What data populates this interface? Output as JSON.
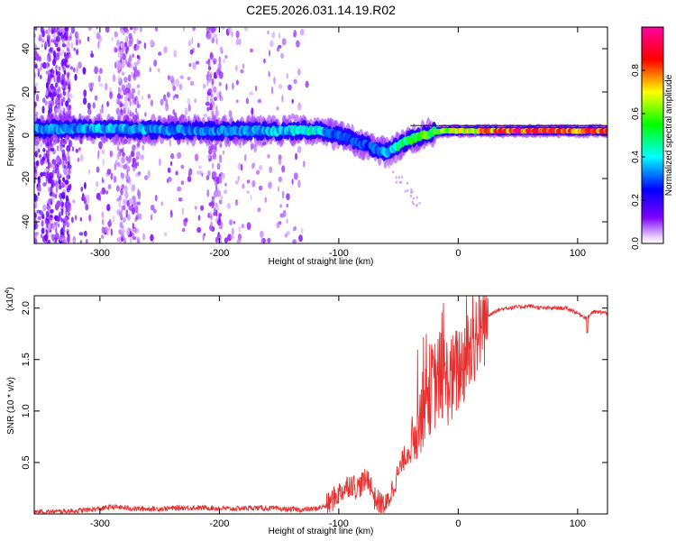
{
  "title": "C2E5.2026.031.14.19.R02",
  "chart_data": [
    {
      "type": "heatmap",
      "name": "spectrogram",
      "xlabel": "Height of straight line (km)",
      "ylabel": "Frequency (Hz)",
      "xlim": [
        -355,
        125
      ],
      "ylim": [
        -50,
        50
      ],
      "x_ticks": [
        -300,
        -200,
        -100,
        0,
        100
      ],
      "x_tick_labels": [
        "-300",
        "-200",
        "-100",
        "0",
        "100"
      ],
      "y_ticks": [
        -40,
        -20,
        0,
        20,
        40
      ],
      "y_tick_labels": [
        "-40",
        "-20",
        "0",
        "20",
        "40"
      ],
      "colorbar": {
        "label": "Normalized spectral amplitude",
        "range": [
          0,
          1
        ],
        "ticks": [
          0.0,
          0.2,
          0.4,
          0.6,
          0.8
        ],
        "tick_labels": [
          "0.0",
          "0.2",
          "0.4",
          "0.6",
          "0.8"
        ],
        "colors": [
          "#ffffff",
          "#8000ff",
          "#0000ff",
          "#00ffff",
          "#00ff00",
          "#ffff00",
          "#ff0000",
          "#ff00a0"
        ]
      },
      "ridge": {
        "x": [
          -355,
          -300,
          -250,
          -200,
          -150,
          -120,
          -100,
          -85,
          -70,
          -60,
          -50,
          -40,
          -30,
          -20,
          -10,
          0,
          50,
          100,
          125
        ],
        "freq_center": [
          3,
          3,
          2.5,
          2,
          2,
          2.5,
          0,
          -3,
          -6,
          -8,
          -5,
          -2,
          0,
          1.5,
          2,
          2,
          2,
          2,
          2
        ],
        "amplitude": [
          0.35,
          0.38,
          0.36,
          0.34,
          0.4,
          0.45,
          0.3,
          0.3,
          0.32,
          0.38,
          0.5,
          0.55,
          0.6,
          0.6,
          0.65,
          0.7,
          0.92,
          0.88,
          0.85
        ]
      }
    },
    {
      "type": "line",
      "name": "snr",
      "xlabel": "Height of straight line (km)",
      "ylabel": "SNR (10 * v/v)",
      "y_multiplier_label": "(x10",
      "y_multiplier_exp": "4",
      "xlim": [
        -355,
        125
      ],
      "ylim": [
        0,
        2.12
      ],
      "x_ticks": [
        -300,
        -200,
        -100,
        0,
        100
      ],
      "x_tick_labels": [
        "-300",
        "-200",
        "-100",
        "0",
        "100"
      ],
      "y_ticks": [
        0.5,
        1.0,
        1.5,
        2.0
      ],
      "y_tick_labels": [
        "0.5",
        "1.0",
        "1.5",
        "2.0"
      ],
      "color": "#e83030",
      "series": [
        {
          "name": "SNR",
          "x": [
            -355,
            -340,
            -320,
            -300,
            -290,
            -280,
            -270,
            -250,
            -230,
            -210,
            -190,
            -170,
            -150,
            -130,
            -120,
            -110,
            -100,
            -95,
            -90,
            -85,
            -80,
            -75,
            -70,
            -65,
            -60,
            -55,
            -50,
            -45,
            -40,
            -35,
            -30,
            -25,
            -20,
            -15,
            -10,
            -5,
            0,
            5,
            10,
            15,
            20,
            25,
            30,
            40,
            50,
            60,
            70,
            80,
            90,
            95,
            100,
            105,
            108,
            112,
            120,
            125
          ],
          "y": [
            0.02,
            0.02,
            0.03,
            0.05,
            0.07,
            0.06,
            0.05,
            0.05,
            0.06,
            0.06,
            0.05,
            0.06,
            0.05,
            0.04,
            0.05,
            0.08,
            0.2,
            0.25,
            0.3,
            0.25,
            0.3,
            0.35,
            0.15,
            0.1,
            0.08,
            0.25,
            0.4,
            0.55,
            0.65,
            0.8,
            1.0,
            1.2,
            1.25,
            1.35,
            1.3,
            1.3,
            1.4,
            1.5,
            1.6,
            1.75,
            1.85,
            1.92,
            1.97,
            2.0,
            2.01,
            2.02,
            2.0,
            2.0,
            2.0,
            1.98,
            1.95,
            1.92,
            1.9,
            1.96,
            1.96,
            1.95
          ]
        }
      ]
    }
  ]
}
